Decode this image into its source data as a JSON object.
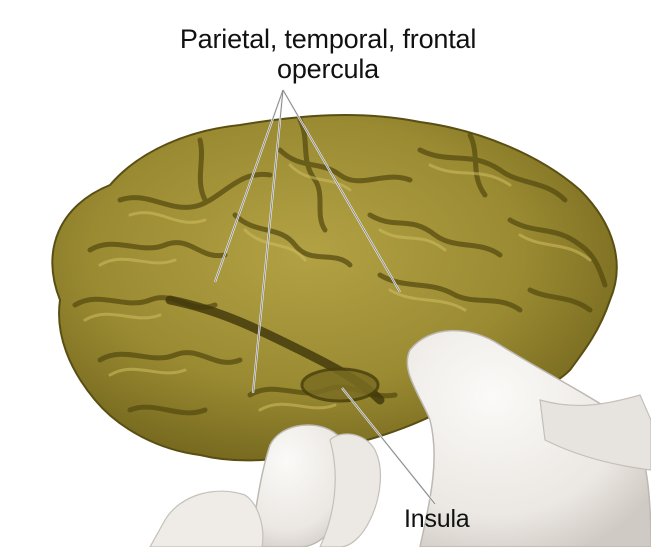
{
  "labels": {
    "opercula_line1": "Parietal, temporal, frontal",
    "opercula_line2": "opercula",
    "insula": "Insula"
  },
  "colors": {
    "background": "#ffffff",
    "brain": "#9b8b33",
    "brain_shadow": "#5e5414",
    "brain_highlight": "#c9b95c",
    "glove": "#f1eeea",
    "glove_shadow": "#c9c5c0",
    "leader_line": "#f4f4f4"
  }
}
